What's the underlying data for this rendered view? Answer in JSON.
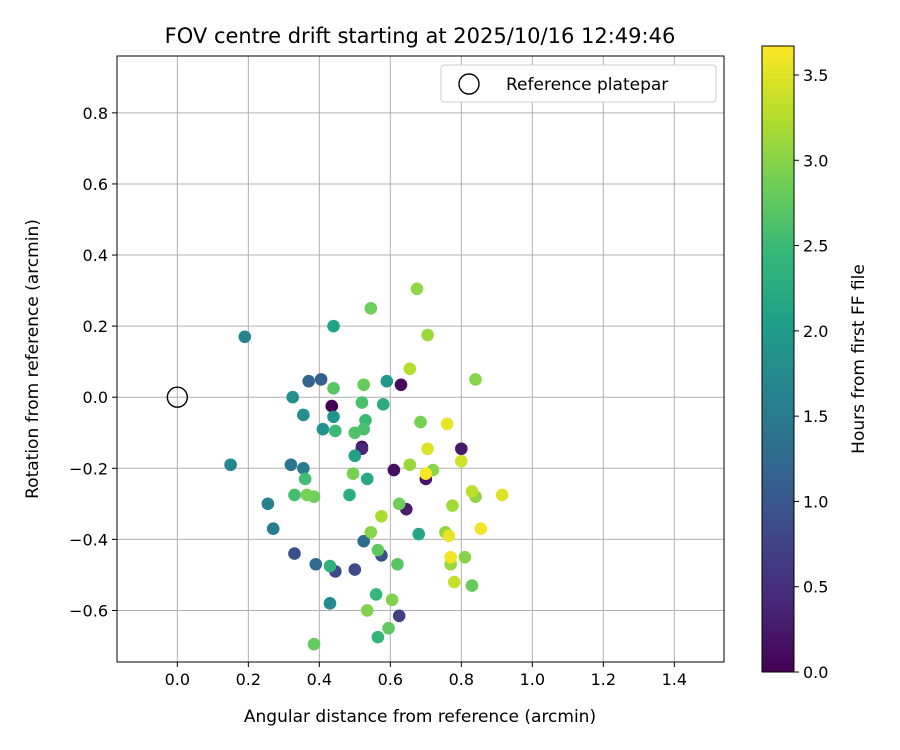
{
  "chart_data": {
    "type": "scatter",
    "title": "FOV centre drift starting at 2025/10/16 12:49:46",
    "xlabel": "Angular distance from reference (arcmin)",
    "ylabel": "Rotation from reference (arcmin)",
    "xlim": [
      -0.17,
      1.54
    ],
    "ylim": [
      -0.745,
      0.96
    ],
    "xticks": [
      0.0,
      0.2,
      0.4,
      0.6,
      0.8,
      1.0,
      1.2,
      1.4
    ],
    "xtick_labels": [
      "0.0",
      "0.2",
      "0.4",
      "0.6",
      "0.8",
      "1.0",
      "1.2",
      "1.4"
    ],
    "yticks": [
      -0.6,
      -0.4,
      -0.2,
      0.0,
      0.2,
      0.4,
      0.6,
      0.8
    ],
    "ytick_labels": [
      "−0.6",
      "−0.4",
      "−0.2",
      "0.0",
      "0.2",
      "0.4",
      "0.6",
      "0.8"
    ],
    "grid": true,
    "legend": {
      "location": "upper-right",
      "label": "Reference platepar"
    },
    "reference_point": {
      "x": 0.0,
      "y": 0.0
    },
    "colorbar": {
      "label": "Hours from first FF file",
      "range": [
        0.0,
        3.67
      ],
      "ticks": [
        0.0,
        0.5,
        1.0,
        1.5,
        2.0,
        2.5,
        3.0,
        3.5
      ],
      "tick_labels": [
        "0.0",
        "0.5",
        "1.0",
        "1.5",
        "2.0",
        "2.5",
        "3.0",
        "3.5"
      ],
      "colormap": "viridis"
    },
    "points": [
      {
        "x": 0.435,
        "y": -0.025,
        "t": 0.0
      },
      {
        "x": 0.52,
        "y": -0.14,
        "t": 0.05
      },
      {
        "x": 0.63,
        "y": 0.035,
        "t": 0.1
      },
      {
        "x": 0.61,
        "y": -0.205,
        "t": 0.15
      },
      {
        "x": 0.7,
        "y": -0.23,
        "t": 0.2
      },
      {
        "x": 0.8,
        "y": -0.145,
        "t": 0.25
      },
      {
        "x": 0.645,
        "y": -0.315,
        "t": 0.3
      },
      {
        "x": 0.52,
        "y": -0.145,
        "t": 0.4
      },
      {
        "x": 0.625,
        "y": -0.615,
        "t": 0.7
      },
      {
        "x": 0.445,
        "y": -0.49,
        "t": 0.8
      },
      {
        "x": 0.5,
        "y": -0.485,
        "t": 0.85
      },
      {
        "x": 0.33,
        "y": -0.44,
        "t": 0.9
      },
      {
        "x": 0.575,
        "y": -0.445,
        "t": 0.9
      },
      {
        "x": 0.405,
        "y": 0.05,
        "t": 1.1
      },
      {
        "x": 0.37,
        "y": 0.045,
        "t": 1.15
      },
      {
        "x": 0.39,
        "y": -0.47,
        "t": 1.25
      },
      {
        "x": 0.525,
        "y": -0.405,
        "t": 1.3
      },
      {
        "x": 0.32,
        "y": -0.19,
        "t": 1.45
      },
      {
        "x": 0.355,
        "y": -0.2,
        "t": 1.5
      },
      {
        "x": 0.27,
        "y": -0.37,
        "t": 1.55
      },
      {
        "x": 0.255,
        "y": -0.3,
        "t": 1.6
      },
      {
        "x": 0.19,
        "y": 0.17,
        "t": 1.65
      },
      {
        "x": 0.15,
        "y": -0.19,
        "t": 1.7
      },
      {
        "x": 0.43,
        "y": -0.58,
        "t": 1.75
      },
      {
        "x": 0.325,
        "y": 0.0,
        "t": 1.8
      },
      {
        "x": 0.355,
        "y": -0.05,
        "t": 1.8
      },
      {
        "x": 0.41,
        "y": -0.09,
        "t": 1.85
      },
      {
        "x": 0.44,
        "y": -0.055,
        "t": 1.9
      },
      {
        "x": 0.59,
        "y": 0.045,
        "t": 1.95
      },
      {
        "x": 0.5,
        "y": -0.165,
        "t": 2.05
      },
      {
        "x": 0.44,
        "y": 0.2,
        "t": 2.1
      },
      {
        "x": 0.68,
        "y": -0.385,
        "t": 2.15
      },
      {
        "x": 0.535,
        "y": -0.23,
        "t": 2.2
      },
      {
        "x": 0.58,
        "y": -0.02,
        "t": 2.25
      },
      {
        "x": 0.485,
        "y": -0.275,
        "t": 2.3
      },
      {
        "x": 0.43,
        "y": -0.475,
        "t": 2.35
      },
      {
        "x": 0.565,
        "y": -0.675,
        "t": 2.4
      },
      {
        "x": 0.56,
        "y": -0.555,
        "t": 2.45
      },
      {
        "x": 0.445,
        "y": -0.095,
        "t": 2.5
      },
      {
        "x": 0.53,
        "y": -0.065,
        "t": 2.5
      },
      {
        "x": 0.36,
        "y": -0.23,
        "t": 2.55
      },
      {
        "x": 0.33,
        "y": -0.275,
        "t": 2.55
      },
      {
        "x": 0.52,
        "y": -0.015,
        "t": 2.6
      },
      {
        "x": 0.525,
        "y": -0.09,
        "t": 2.6
      },
      {
        "x": 0.5,
        "y": -0.1,
        "t": 2.65
      },
      {
        "x": 0.44,
        "y": 0.025,
        "t": 2.7
      },
      {
        "x": 0.62,
        "y": -0.47,
        "t": 2.7
      },
      {
        "x": 0.565,
        "y": -0.43,
        "t": 2.75
      },
      {
        "x": 0.595,
        "y": -0.65,
        "t": 2.75
      },
      {
        "x": 0.83,
        "y": -0.53,
        "t": 2.8
      },
      {
        "x": 0.385,
        "y": -0.695,
        "t": 2.8
      },
      {
        "x": 0.525,
        "y": 0.035,
        "t": 2.8
      },
      {
        "x": 0.385,
        "y": -0.28,
        "t": 2.85
      },
      {
        "x": 0.545,
        "y": 0.25,
        "t": 2.85
      },
      {
        "x": 0.625,
        "y": -0.3,
        "t": 2.85
      },
      {
        "x": 0.365,
        "y": -0.275,
        "t": 2.9
      },
      {
        "x": 0.685,
        "y": -0.07,
        "t": 2.9
      },
      {
        "x": 0.495,
        "y": -0.215,
        "t": 2.9
      },
      {
        "x": 0.605,
        "y": -0.57,
        "t": 2.95
      },
      {
        "x": 0.535,
        "y": -0.6,
        "t": 2.95
      },
      {
        "x": 0.545,
        "y": -0.38,
        "t": 3.0
      },
      {
        "x": 0.72,
        "y": -0.205,
        "t": 3.0
      },
      {
        "x": 0.84,
        "y": 0.05,
        "t": 3.0
      },
      {
        "x": 0.81,
        "y": -0.45,
        "t": 3.0
      },
      {
        "x": 0.755,
        "y": -0.38,
        "t": 3.05
      },
      {
        "x": 0.84,
        "y": -0.28,
        "t": 3.05
      },
      {
        "x": 0.675,
        "y": 0.305,
        "t": 3.05
      },
      {
        "x": 0.705,
        "y": 0.175,
        "t": 3.1
      },
      {
        "x": 0.655,
        "y": -0.19,
        "t": 3.1
      },
      {
        "x": 0.77,
        "y": -0.47,
        "t": 3.1
      },
      {
        "x": 0.775,
        "y": -0.305,
        "t": 3.15
      },
      {
        "x": 0.575,
        "y": -0.335,
        "t": 3.2
      },
      {
        "x": 0.655,
        "y": 0.08,
        "t": 3.25
      },
      {
        "x": 0.83,
        "y": -0.265,
        "t": 3.3
      },
      {
        "x": 0.78,
        "y": -0.52,
        "t": 3.35
      },
      {
        "x": 0.8,
        "y": -0.18,
        "t": 3.4
      },
      {
        "x": 0.705,
        "y": -0.145,
        "t": 3.5
      },
      {
        "x": 0.915,
        "y": -0.275,
        "t": 3.5
      },
      {
        "x": 0.765,
        "y": -0.39,
        "t": 3.55
      },
      {
        "x": 0.76,
        "y": -0.075,
        "t": 3.55
      },
      {
        "x": 0.77,
        "y": -0.45,
        "t": 3.6
      },
      {
        "x": 0.855,
        "y": -0.37,
        "t": 3.6
      },
      {
        "x": 0.7,
        "y": -0.215,
        "t": 3.65
      }
    ]
  }
}
